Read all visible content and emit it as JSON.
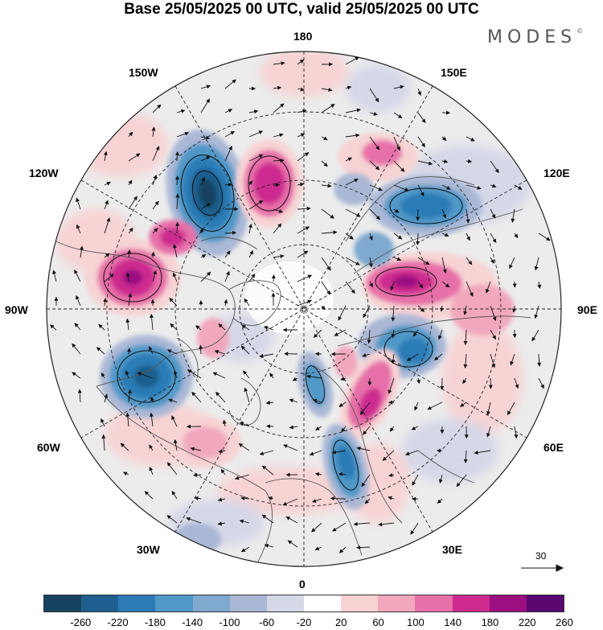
{
  "title": "Base 25/05/2025 00 UTC, valid 25/05/2025 00 UTC",
  "brand": "MODES",
  "brand_mark": "©",
  "longitude_labels": {
    "n180": "180",
    "n150e": "150E",
    "n120e": "120E",
    "n90e": "90E",
    "n60e": "60E",
    "n30e": "30E",
    "n0": "0",
    "n30w": "30W",
    "n60w": "60W",
    "n90w": "90W",
    "n120w": "120W",
    "n150w": "150W"
  },
  "vector_scale_label": "30",
  "colorbar": {
    "ticks": [
      "-260",
      "-220",
      "-180",
      "-140",
      "-100",
      "-60",
      "-20",
      "20",
      "60",
      "100",
      "140",
      "180",
      "220",
      "260"
    ],
    "colors": [
      "#17425f",
      "#1f5f8f",
      "#2c7bb6",
      "#4f98c8",
      "#7fa9cf",
      "#aab8d6",
      "#d6d8e8",
      "#ffffff",
      "#f7d3d4",
      "#f1a8bd",
      "#e770a8",
      "#cd2a8f",
      "#9b0f81",
      "#5a0772"
    ]
  },
  "map": {
    "ocean_color": "#ececec",
    "features": [
      {
        "name": "low-center-1",
        "value": -240
      },
      {
        "name": "high-center-1",
        "value": 180
      },
      {
        "name": "low-center-2",
        "value": -200
      },
      {
        "name": "high-center-2",
        "value": 200
      },
      {
        "name": "high-center-3",
        "value": 160
      },
      {
        "name": "low-center-3",
        "value": -220
      },
      {
        "name": "low-center-4",
        "value": -180
      },
      {
        "name": "high-center-4",
        "value": 140
      },
      {
        "name": "low-center-5",
        "value": -160
      },
      {
        "name": "high-center-5",
        "value": 120
      },
      {
        "name": "low-center-6",
        "value": -140
      },
      {
        "name": "high-center-6",
        "value": 100
      }
    ]
  }
}
